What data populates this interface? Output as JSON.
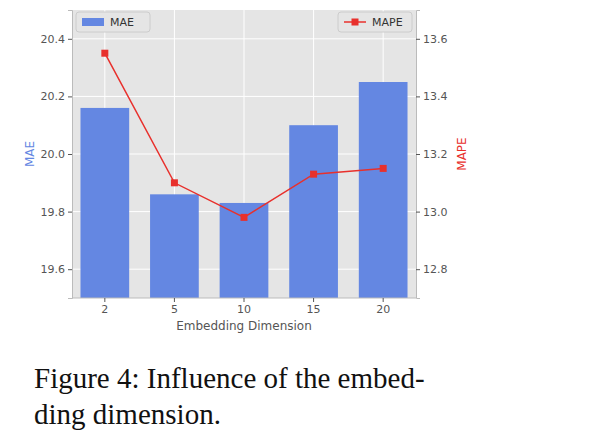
{
  "chart_data": {
    "type": "bar",
    "title": [
      "Figure 4: Influence of the embed-",
      "ding dimension."
    ],
    "x_label": "Embedding Dimension",
    "y_label": "MAE",
    "y2_label": "MAPE",
    "categories": [
      "2",
      "5",
      "10",
      "15",
      "20"
    ],
    "series": [
      {
        "name": "MAE",
        "type": "bar",
        "color": "#6487e2",
        "values": [
          20.16,
          19.86,
          19.83,
          20.1,
          20.25
        ]
      },
      {
        "name": "MAPE",
        "type": "line",
        "axis": "y2",
        "color": "#e8302c",
        "marker": "square",
        "line_style": "solid",
        "values": [
          13.55,
          13.1,
          12.98,
          13.13,
          13.15
        ]
      }
    ],
    "ylim": [
      19.5,
      20.5
    ],
    "yticks": [
      19.6,
      19.8,
      {
        "value": 20,
        "label": "20.0"
      },
      20.2,
      20.4
    ],
    "y2lim": [
      12.7,
      13.7
    ],
    "y2ticks": [
      12.8,
      {
        "value": 13,
        "label": "13.0"
      },
      13.2,
      13.4,
      13.6
    ],
    "grid": true,
    "legend": "top"
  }
}
